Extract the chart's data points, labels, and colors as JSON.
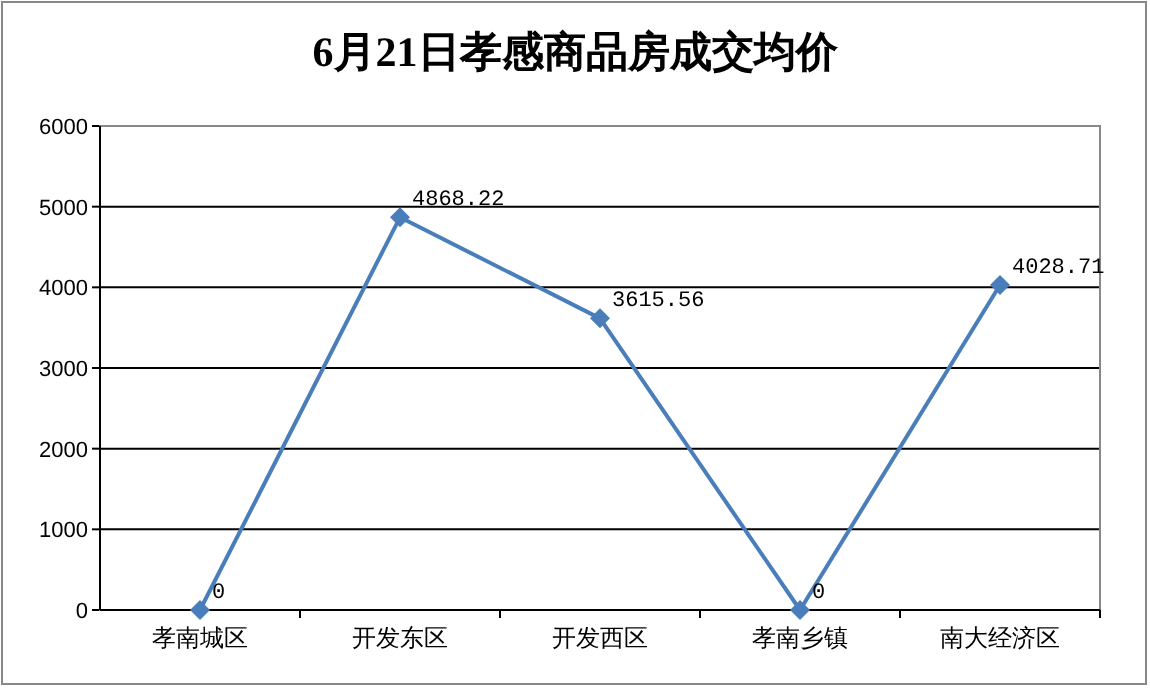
{
  "chart_data": {
    "type": "line",
    "title": "6月21日孝感商品房成交均价",
    "categories": [
      "孝南城区",
      "开发东区",
      "开发西区",
      "孝南乡镇",
      "南大经济区"
    ],
    "series": [
      {
        "color": "#4a7ebb",
        "values": [
          0,
          4868.22,
          3615.56,
          0,
          4028.71
        ]
      }
    ],
    "ylim": [
      0,
      6000
    ],
    "yticks": [
      0,
      1000,
      2000,
      3000,
      4000,
      5000,
      6000
    ],
    "grid": "y",
    "marker": "diamond",
    "data_labels": true
  }
}
